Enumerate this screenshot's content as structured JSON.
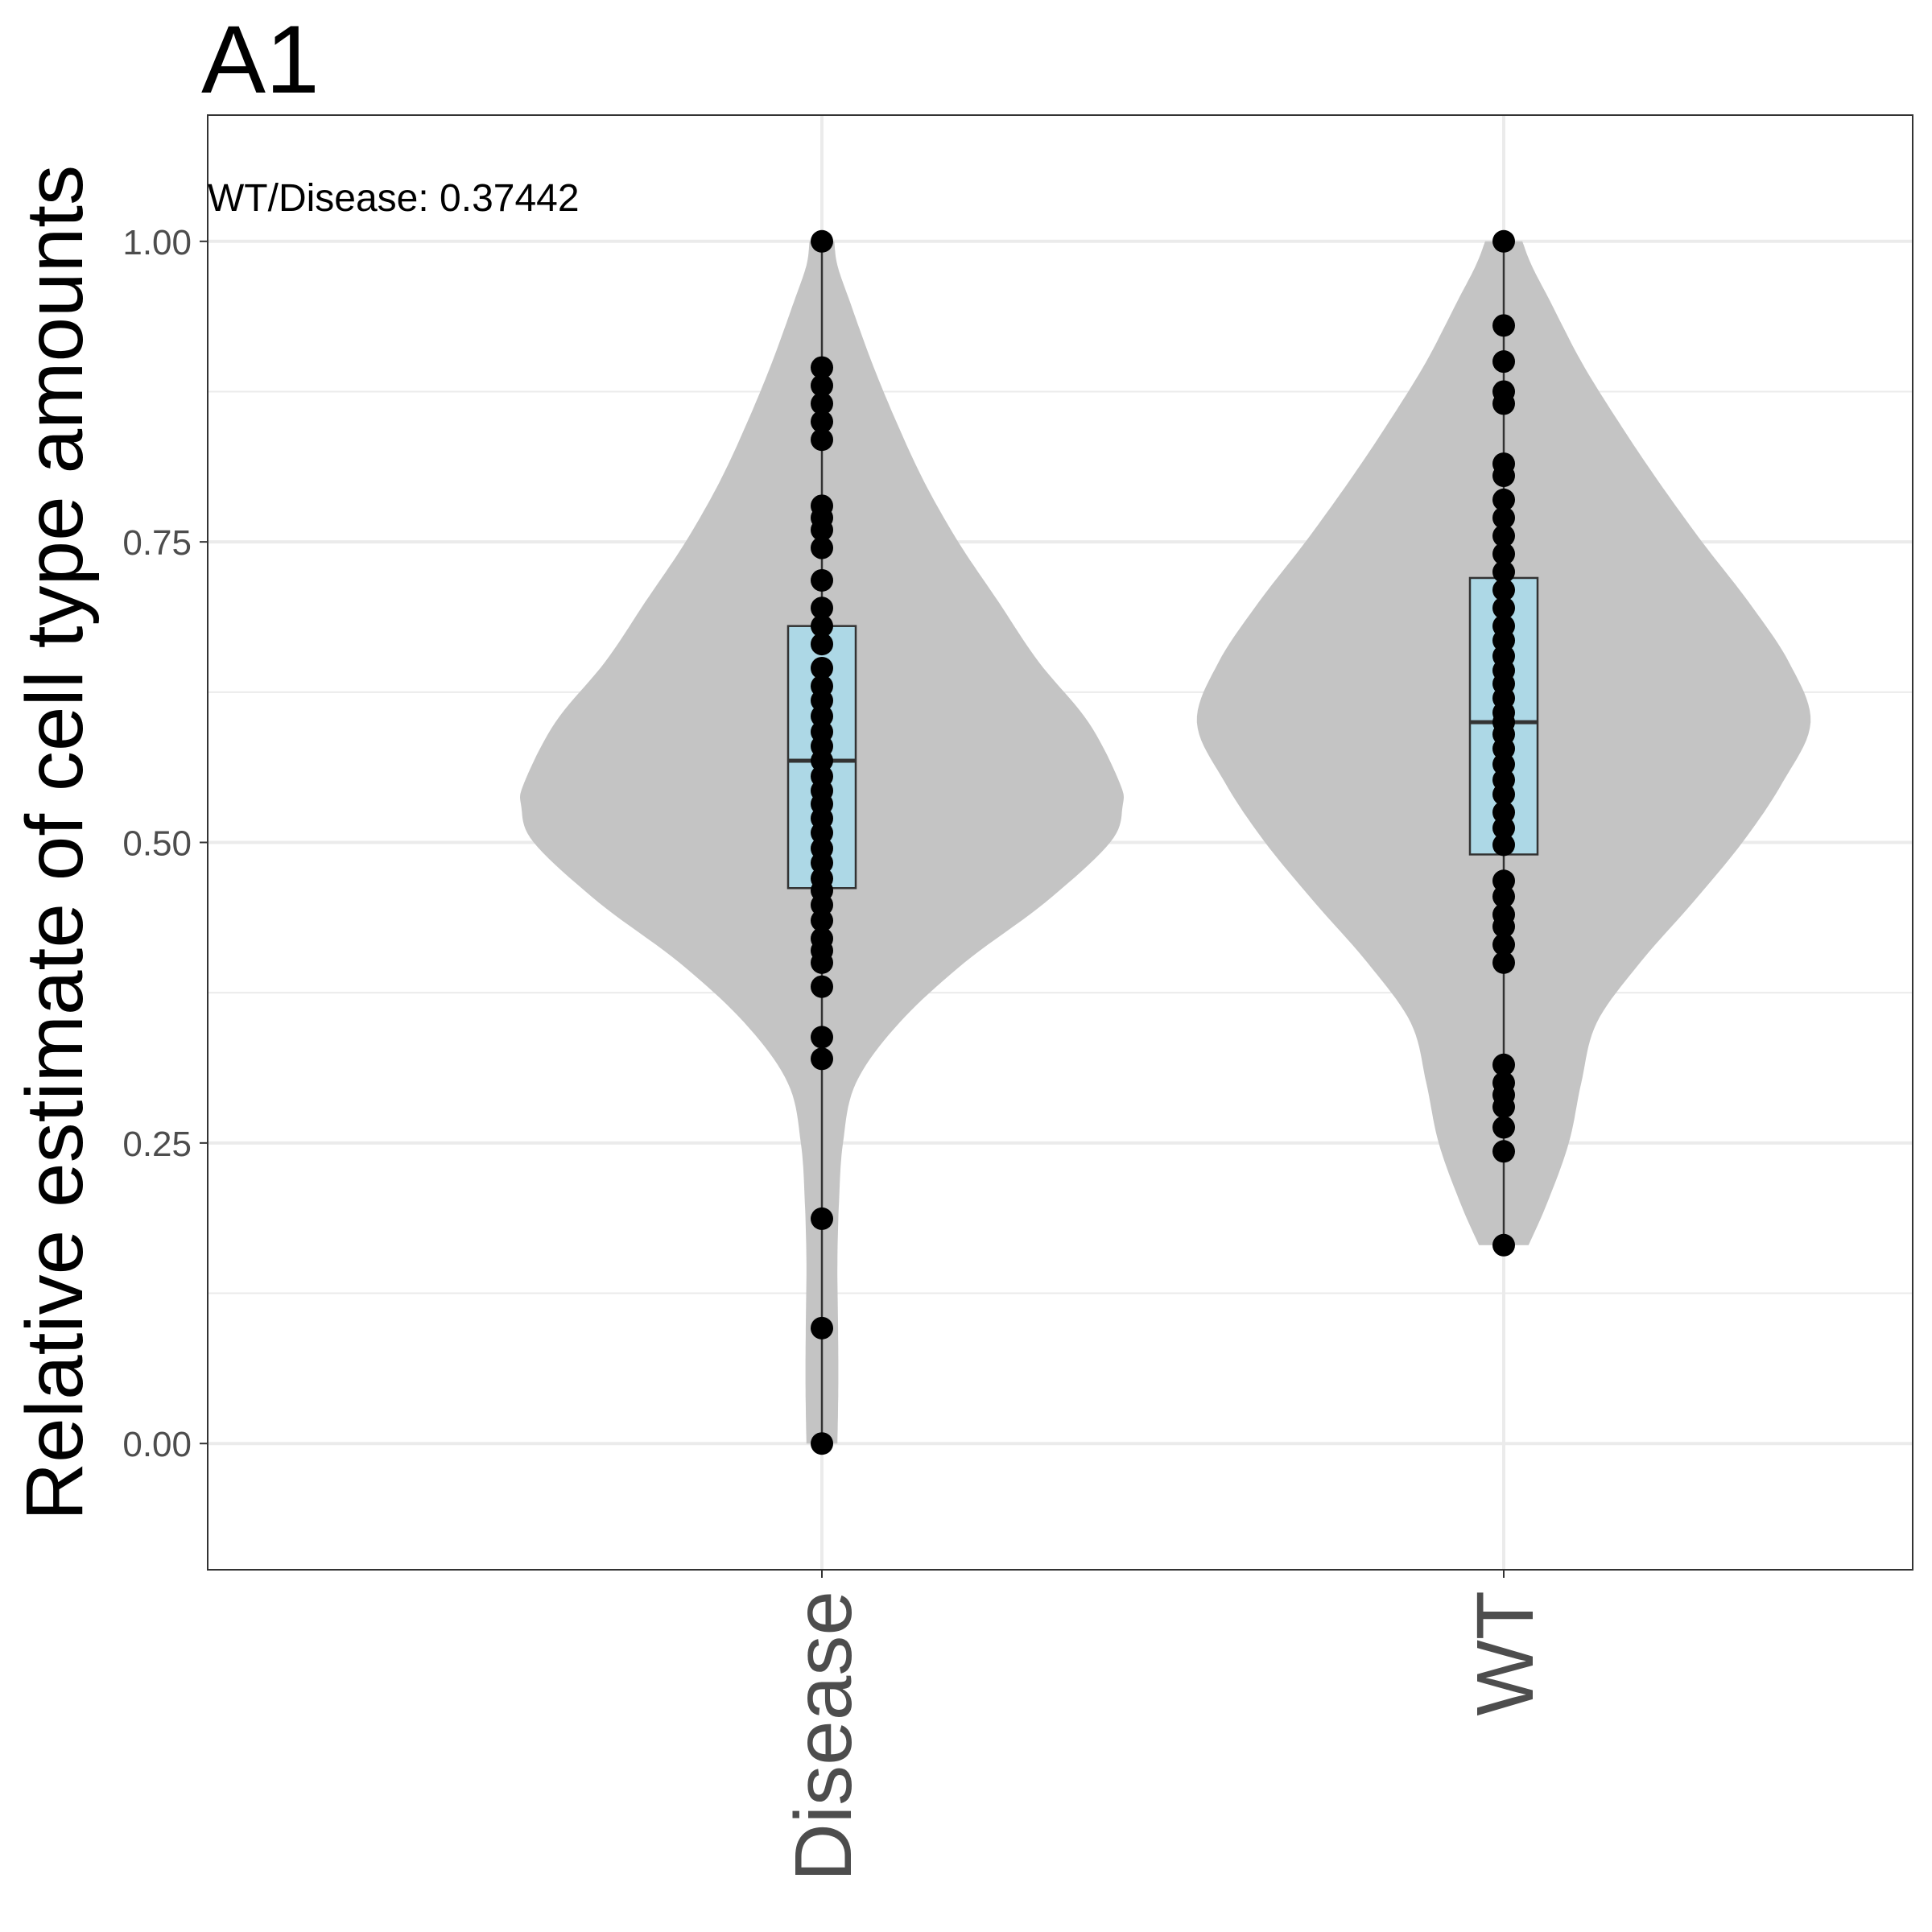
{
  "chart_data": {
    "type": "violin",
    "title": "A1",
    "xlabel": "",
    "ylabel": "Relative estimate of cell type amounts",
    "annotation": "WT/Disease: 0.37442",
    "categories": [
      "Disease",
      "WT"
    ],
    "ylim": [
      -0.105,
      1.105
    ],
    "yticks": [
      0.0,
      0.25,
      0.5,
      0.75,
      1.0
    ],
    "ytick_labels": [
      "0.00",
      "0.25",
      "0.50",
      "0.75",
      "1.00"
    ],
    "grid": true,
    "colors": {
      "violin": "#c4c4c4",
      "box": "#add8e6",
      "points": "#000000",
      "grid": "#ebebeb",
      "panel_border": "#333333",
      "tick_label": "#4d4d4d"
    },
    "series": [
      {
        "category": "Disease",
        "box": {
          "min": 0.0,
          "q1": 0.462,
          "median": 0.568,
          "q3": 0.68,
          "max": 1.0
        },
        "violin_density": [
          [
            0.0,
            0.05
          ],
          [
            0.05,
            0.053
          ],
          [
            0.1,
            0.052
          ],
          [
            0.15,
            0.05
          ],
          [
            0.2,
            0.055
          ],
          [
            0.25,
            0.068
          ],
          [
            0.3,
            0.11
          ],
          [
            0.35,
            0.25
          ],
          [
            0.4,
            0.46
          ],
          [
            0.45,
            0.72
          ],
          [
            0.5,
            0.93
          ],
          [
            0.53,
            0.97
          ],
          [
            0.55,
            0.96
          ],
          [
            0.6,
            0.86
          ],
          [
            0.65,
            0.7
          ],
          [
            0.7,
            0.57
          ],
          [
            0.75,
            0.44
          ],
          [
            0.8,
            0.33
          ],
          [
            0.85,
            0.24
          ],
          [
            0.9,
            0.16
          ],
          [
            0.95,
            0.09
          ],
          [
            0.98,
            0.05
          ],
          [
            1.0,
            0.04
          ]
        ],
        "points": [
          1.0,
          0.895,
          0.88,
          0.865,
          0.85,
          0.835,
          0.78,
          0.77,
          0.76,
          0.745,
          0.718,
          0.695,
          0.68,
          0.665,
          0.645,
          0.63,
          0.618,
          0.605,
          0.592,
          0.58,
          0.568,
          0.555,
          0.543,
          0.532,
          0.52,
          0.508,
          0.495,
          0.483,
          0.47,
          0.46,
          0.448,
          0.435,
          0.42,
          0.41,
          0.4,
          0.38,
          0.338,
          0.32,
          0.187,
          0.096,
          0.0
        ]
      },
      {
        "category": "WT",
        "box": {
          "min": 0.165,
          "q1": 0.49,
          "median": 0.6,
          "q3": 0.72,
          "max": 1.0
        },
        "violin_density": [
          [
            0.165,
            0.08
          ],
          [
            0.2,
            0.14
          ],
          [
            0.25,
            0.21
          ],
          [
            0.3,
            0.25
          ],
          [
            0.35,
            0.3
          ],
          [
            0.4,
            0.44
          ],
          [
            0.45,
            0.61
          ],
          [
            0.5,
            0.77
          ],
          [
            0.55,
            0.9
          ],
          [
            0.6,
            0.99
          ],
          [
            0.65,
            0.92
          ],
          [
            0.7,
            0.79
          ],
          [
            0.75,
            0.64
          ],
          [
            0.8,
            0.5
          ],
          [
            0.85,
            0.37
          ],
          [
            0.9,
            0.25
          ],
          [
            0.95,
            0.15
          ],
          [
            0.98,
            0.09
          ],
          [
            1.0,
            0.06
          ]
        ],
        "points": [
          1.0,
          0.93,
          0.9,
          0.875,
          0.865,
          0.815,
          0.805,
          0.785,
          0.77,
          0.755,
          0.74,
          0.725,
          0.71,
          0.695,
          0.68,
          0.668,
          0.655,
          0.643,
          0.632,
          0.62,
          0.608,
          0.6,
          0.59,
          0.578,
          0.565,
          0.552,
          0.54,
          0.525,
          0.512,
          0.498,
          0.468,
          0.455,
          0.44,
          0.43,
          0.415,
          0.4,
          0.315,
          0.3,
          0.29,
          0.28,
          0.263,
          0.243,
          0.165
        ]
      }
    ]
  }
}
